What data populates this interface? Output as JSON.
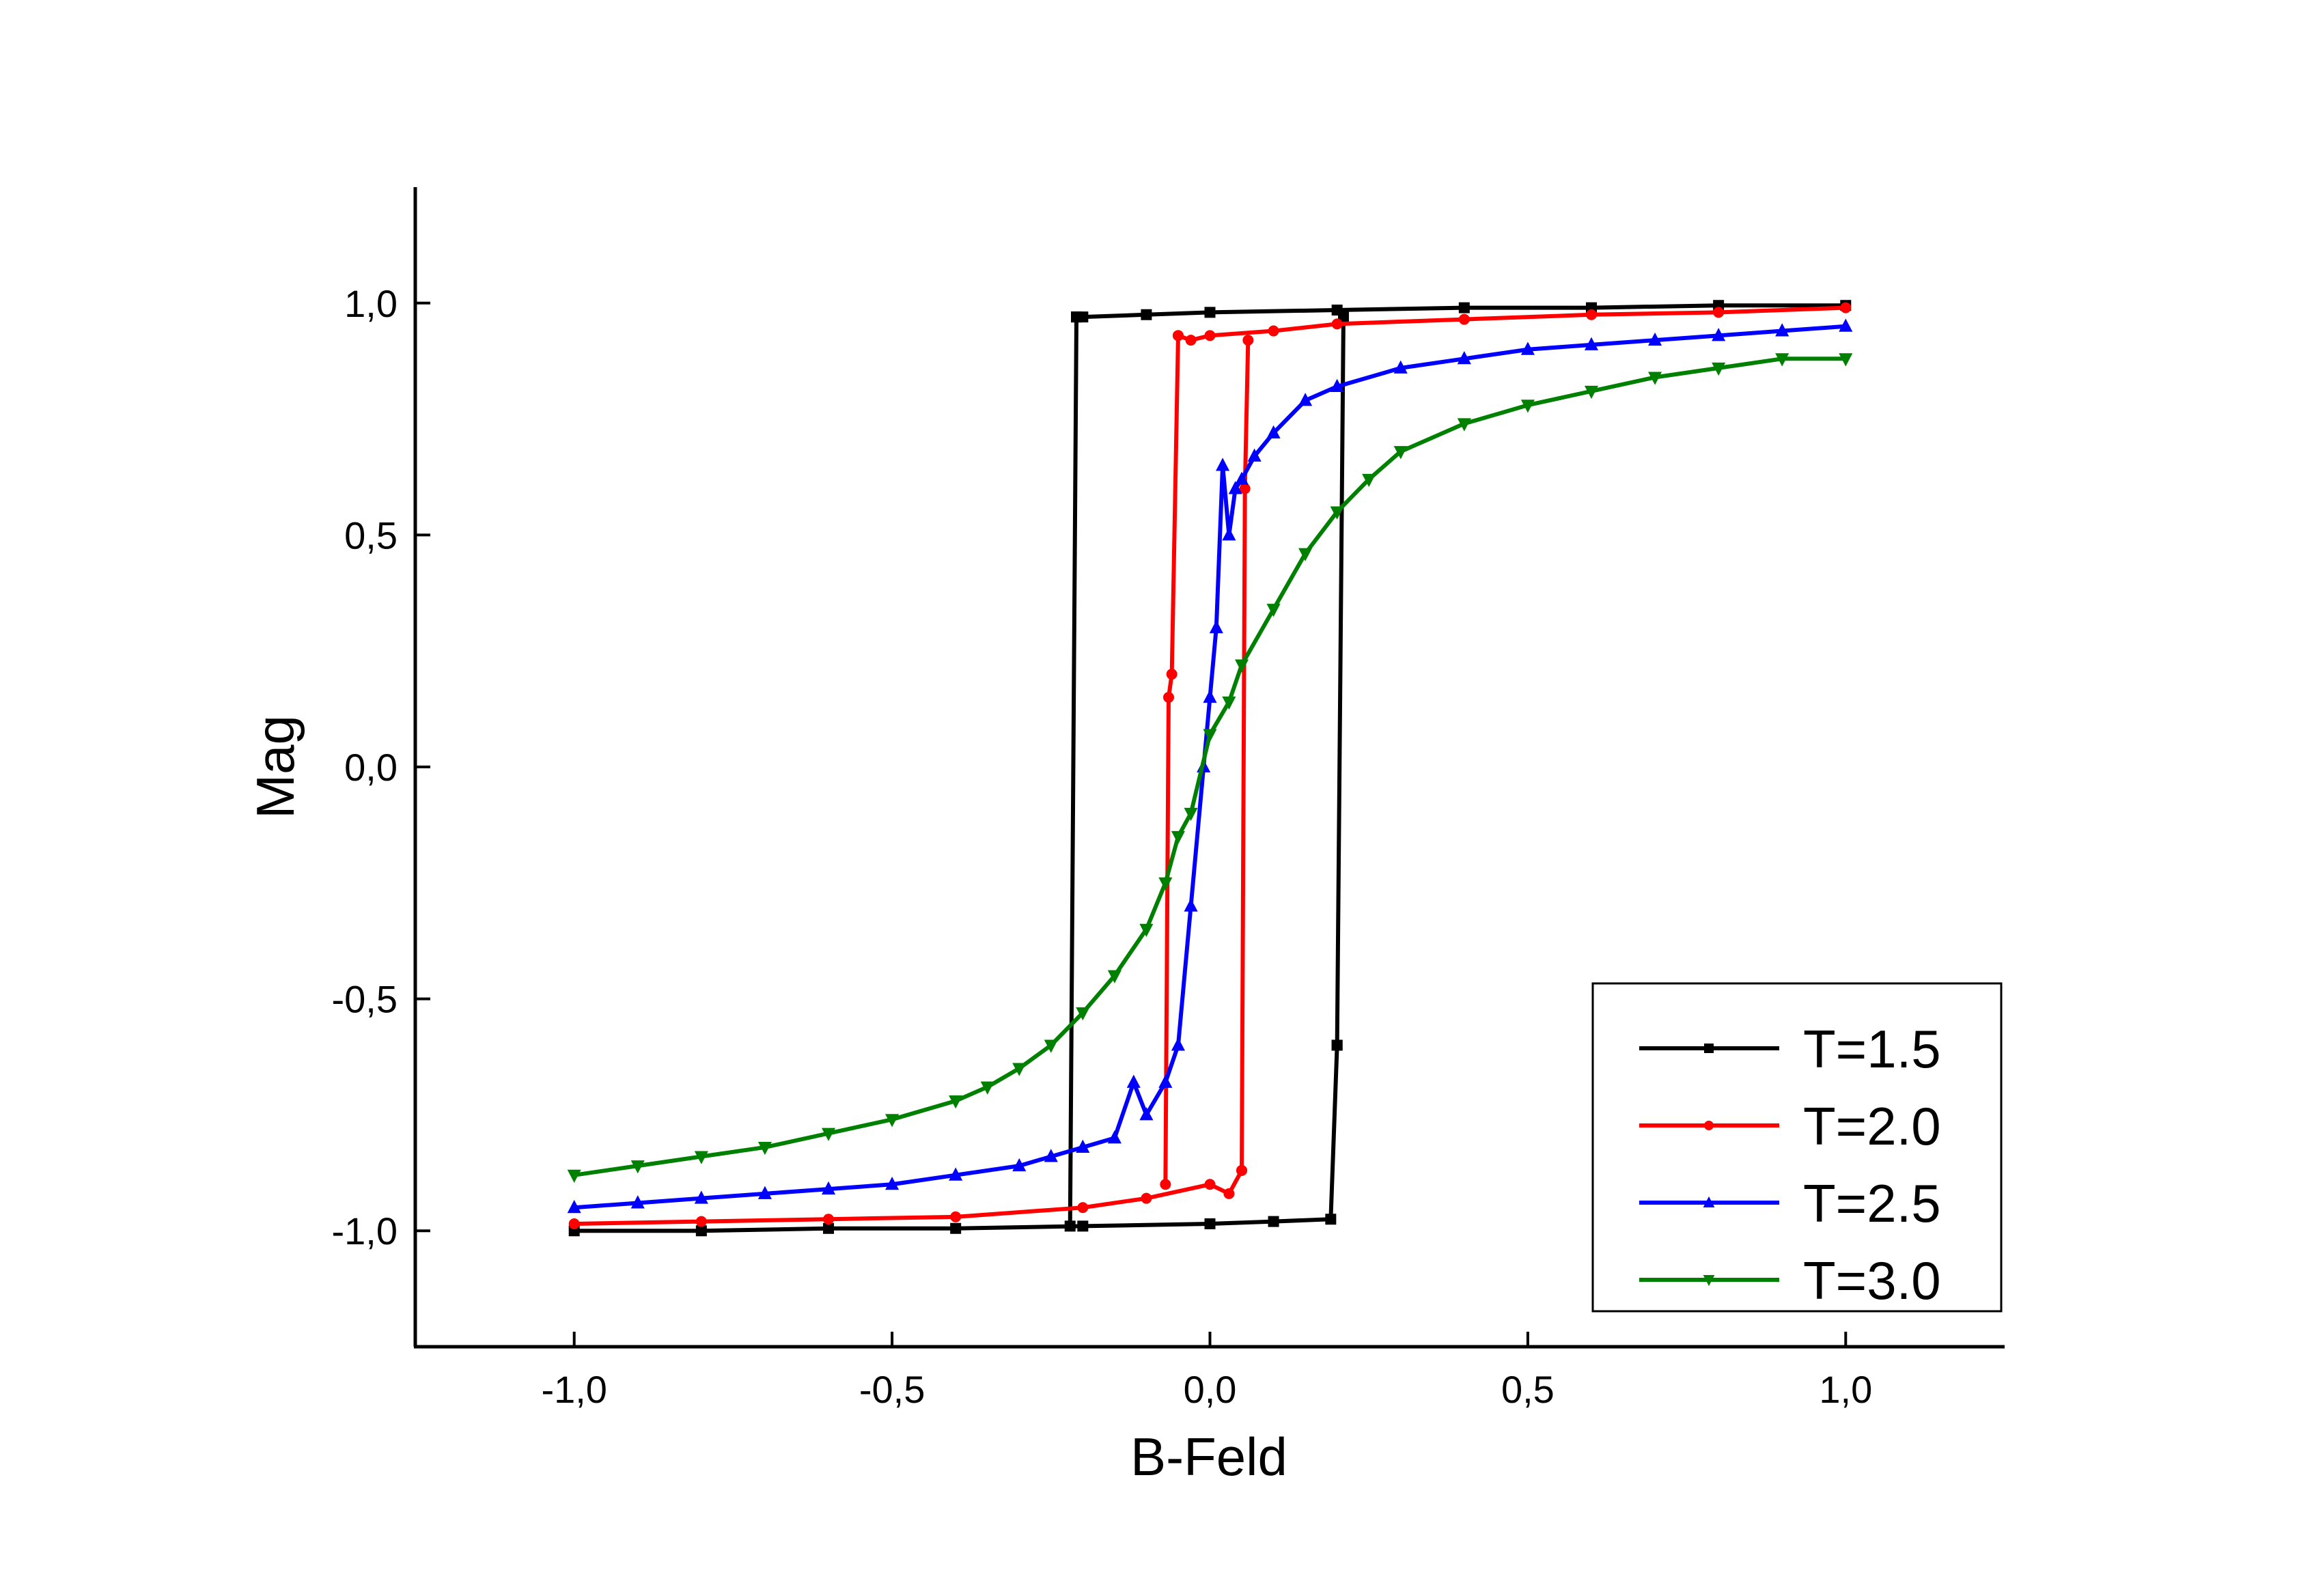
{
  "chart_data": {
    "type": "line",
    "title": "",
    "xlabel": "B-Feld",
    "ylabel": "Mag",
    "xlim": [
      -1.25,
      1.25
    ],
    "ylim": [
      -1.25,
      1.25
    ],
    "xticks": [
      -1.0,
      -0.5,
      0.0,
      0.5,
      1.0
    ],
    "xtick_labels": [
      "-1,0",
      "-0,5",
      "0,0",
      "0,5",
      "1,0"
    ],
    "yticks": [
      -1.0,
      -0.5,
      0.0,
      0.5,
      1.0
    ],
    "ytick_labels": [
      "-1,0",
      "-0,5",
      "0,0",
      "0,5",
      "1,0"
    ],
    "grid": false,
    "legend_position": "bottom-right",
    "series": [
      {
        "name": "T=1.5",
        "color": "#000000",
        "marker": "square",
        "up": {
          "x": [
            -1.0,
            -0.8,
            -0.6,
            -0.4,
            -0.2,
            0.0,
            0.1,
            0.19,
            0.2
          ],
          "y": [
            -1.0,
            -1.0,
            -0.995,
            -0.995,
            -0.99,
            -0.985,
            -0.98,
            -0.975,
            -0.6
          ]
        },
        "jump_up": {
          "x": [
            0.2,
            0.21
          ],
          "y": [
            -0.6,
            0.97
          ]
        },
        "down": {
          "x": [
            1.0,
            0.8,
            0.6,
            0.4,
            0.2,
            0.0,
            -0.1,
            -0.2,
            -0.21
          ],
          "y": [
            0.995,
            0.995,
            0.99,
            0.99,
            0.985,
            0.98,
            0.975,
            0.97,
            0.97
          ]
        },
        "jump_down": {
          "x": [
            -0.21,
            -0.22
          ],
          "y": [
            0.97,
            -0.99
          ]
        }
      },
      {
        "name": "T=2.0",
        "color": "#ff0000",
        "marker": "circle",
        "up": {
          "x": [
            -1.0,
            -0.8,
            -0.6,
            -0.4,
            -0.2,
            -0.1,
            0.0,
            0.03,
            0.05
          ],
          "y": [
            -0.985,
            -0.98,
            -0.975,
            -0.97,
            -0.95,
            -0.93,
            -0.9,
            -0.92,
            -0.87
          ]
        },
        "jump_up": {
          "x": [
            0.05,
            0.055,
            0.06
          ],
          "y": [
            -0.87,
            0.6,
            0.92
          ]
        },
        "down": {
          "x": [
            1.0,
            0.8,
            0.6,
            0.4,
            0.2,
            0.1,
            0.0,
            -0.03,
            -0.05
          ],
          "y": [
            0.99,
            0.98,
            0.975,
            0.965,
            0.955,
            0.94,
            0.93,
            0.92,
            0.93
          ]
        },
        "jump_down": {
          "x": [
            -0.05,
            -0.06,
            -0.065,
            -0.07
          ],
          "y": [
            0.93,
            0.2,
            0.15,
            -0.9
          ]
        }
      },
      {
        "name": "T=2.5",
        "color": "#0000ff",
        "marker": "triangle-up",
        "x": [
          -1.0,
          -0.9,
          -0.8,
          -0.7,
          -0.6,
          -0.5,
          -0.4,
          -0.3,
          -0.25,
          -0.2,
          -0.15,
          -0.12,
          -0.1,
          -0.07,
          -0.05,
          -0.03,
          -0.01,
          0.0,
          0.01,
          0.02,
          0.03,
          0.04,
          0.05,
          0.07,
          0.1,
          0.15,
          0.2,
          0.3,
          0.4,
          0.5,
          0.6,
          0.7,
          0.8,
          0.9,
          1.0
        ],
        "y": [
          -0.95,
          -0.94,
          -0.93,
          -0.92,
          -0.91,
          -0.9,
          -0.88,
          -0.86,
          -0.84,
          -0.82,
          -0.8,
          -0.68,
          -0.75,
          -0.68,
          -0.6,
          -0.3,
          0.0,
          0.15,
          0.3,
          0.65,
          0.5,
          0.6,
          0.62,
          0.67,
          0.72,
          0.79,
          0.82,
          0.86,
          0.88,
          0.9,
          0.91,
          0.92,
          0.93,
          0.94,
          0.95
        ]
      },
      {
        "name": "T=3.0",
        "color": "#008000",
        "marker": "triangle-down",
        "x": [
          -1.0,
          -0.9,
          -0.8,
          -0.7,
          -0.6,
          -0.5,
          -0.4,
          -0.35,
          -0.3,
          -0.25,
          -0.2,
          -0.15,
          -0.1,
          -0.07,
          -0.05,
          -0.03,
          0.0,
          0.03,
          0.05,
          0.1,
          0.15,
          0.2,
          0.25,
          0.3,
          0.4,
          0.5,
          0.6,
          0.7,
          0.8,
          0.9,
          1.0
        ],
        "y": [
          -0.88,
          -0.86,
          -0.84,
          -0.82,
          -0.79,
          -0.76,
          -0.72,
          -0.69,
          -0.65,
          -0.6,
          -0.53,
          -0.45,
          -0.35,
          -0.25,
          -0.15,
          -0.1,
          0.07,
          0.14,
          0.22,
          0.34,
          0.46,
          0.55,
          0.62,
          0.68,
          0.74,
          0.78,
          0.81,
          0.84,
          0.86,
          0.88,
          0.88
        ]
      }
    ]
  }
}
